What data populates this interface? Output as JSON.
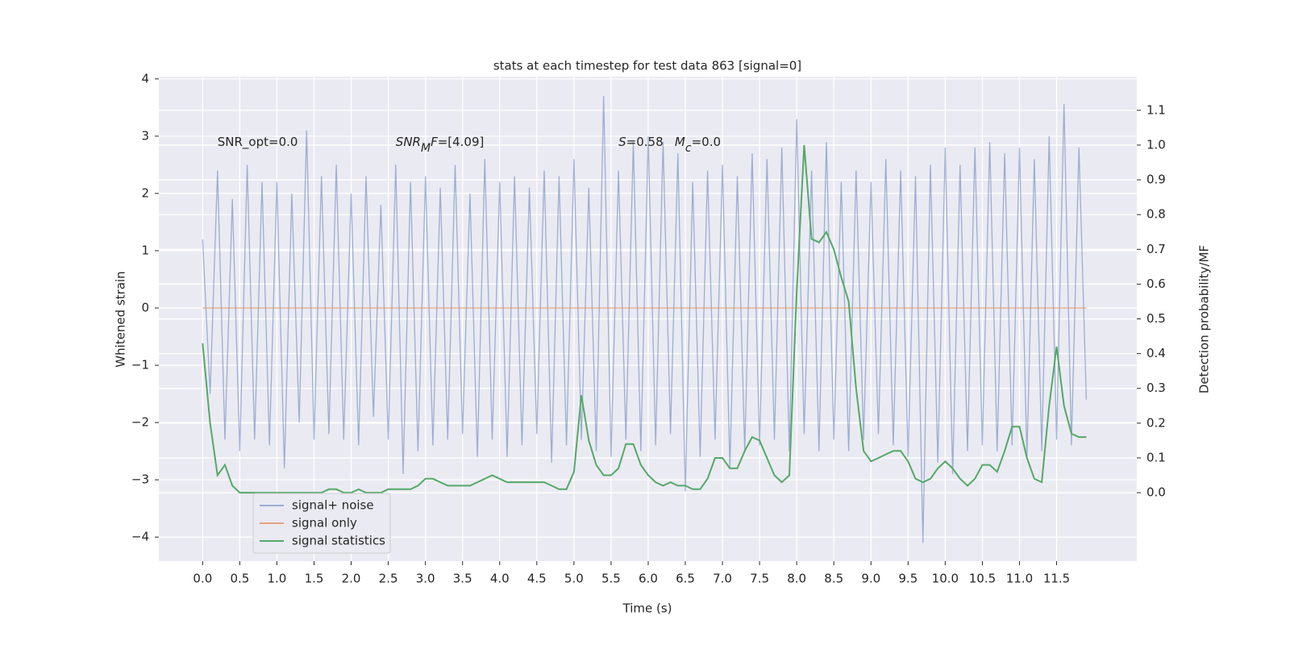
{
  "chart_data": {
    "type": "line",
    "title": "stats at each timestep for test data 863 [signal=0]",
    "xlabel": "Time (s)",
    "ylabel": "Whitened strain",
    "y2label": "Detection probability/MF",
    "annotations": [
      {
        "x": 0.2,
        "y": 2.9,
        "parts": [
          {
            "text": "SNR_opt=0.0"
          }
        ]
      },
      {
        "x": 2.6,
        "y": 2.9,
        "parts": [
          {
            "text": "SNR",
            "italic": true
          },
          {
            "text": "M",
            "italic": true,
            "sub": true
          },
          {
            "text": "F",
            "italic": true
          },
          {
            "text": "=[4.09]"
          }
        ]
      },
      {
        "x": 5.6,
        "y": 2.9,
        "parts": [
          {
            "text": "S",
            "italic": true
          },
          {
            "text": "=0.58   "
          },
          {
            "text": "M",
            "italic": true
          },
          {
            "text": "c",
            "italic": true,
            "sub": true
          },
          {
            "text": "=0.0"
          }
        ]
      }
    ],
    "x": [
      0,
      0.1,
      0.2,
      0.3,
      0.4,
      0.5,
      0.6,
      0.7,
      0.8,
      0.9,
      1,
      1.1,
      1.2,
      1.3,
      1.4,
      1.5,
      1.6,
      1.7,
      1.8,
      1.9,
      2,
      2.1,
      2.2,
      2.3,
      2.4,
      2.5,
      2.6,
      2.7,
      2.8,
      2.9,
      3,
      3.1,
      3.2,
      3.3,
      3.4,
      3.5,
      3.6,
      3.7,
      3.8,
      3.9,
      4,
      4.1,
      4.2,
      4.3,
      4.4,
      4.5,
      4.6,
      4.7,
      4.8,
      4.9,
      5,
      5.1,
      5.2,
      5.3,
      5.4,
      5.5,
      5.6,
      5.7,
      5.8,
      5.9,
      6,
      6.1,
      6.2,
      6.3,
      6.4,
      6.5,
      6.6,
      6.7,
      6.8,
      6.9,
      7,
      7.1,
      7.2,
      7.3,
      7.4,
      7.5,
      7.6,
      7.7,
      7.8,
      7.9,
      8,
      8.1,
      8.2,
      8.3,
      8.4,
      8.5,
      8.6,
      8.7,
      8.8,
      8.9,
      9,
      9.1,
      9.2,
      9.3,
      9.4,
      9.5,
      9.6,
      9.7,
      9.8,
      9.9,
      10,
      10.1,
      10.2,
      10.3,
      10.4,
      10.5,
      10.6,
      10.7,
      10.8,
      10.9,
      11,
      11.1,
      11.2,
      11.3,
      11.4,
      11.5,
      11.6,
      11.7,
      11.8,
      11.9
    ],
    "series": [
      {
        "name": "signal+ noise",
        "color": "#4c72b0",
        "opacity": 0.5,
        "axis": "y",
        "values": [
          1.2,
          -1.5,
          2.4,
          -2.3,
          1.9,
          -2.5,
          2.5,
          -2.3,
          2.2,
          -2.4,
          2.2,
          -2.8,
          2.0,
          -2.0,
          3.1,
          -2.3,
          2.3,
          -2.2,
          2.5,
          -2.3,
          2.0,
          -2.4,
          2.3,
          -1.9,
          1.8,
          -2.3,
          2.5,
          -2.9,
          2.2,
          -2.5,
          2.3,
          -2.4,
          2.1,
          -2.3,
          2.5,
          -2.2,
          2.0,
          -2.6,
          2.6,
          -2.3,
          2.2,
          -2.6,
          2.3,
          -2.4,
          2.1,
          -2.2,
          2.4,
          -2.7,
          2.3,
          -2.4,
          2.6,
          -2.3,
          2.1,
          -2.5,
          3.7,
          -2.6,
          2.4,
          -2.3,
          2.9,
          -2.5,
          3.0,
          -2.4,
          2.9,
          -2.2,
          2.7,
          -3.2,
          2.2,
          -2.6,
          2.4,
          -2.3,
          2.5,
          -2.8,
          2.3,
          -2.5,
          2.7,
          -2.4,
          2.6,
          -2.3,
          2.8,
          -2.5,
          3.3,
          -2.2,
          2.4,
          -2.5,
          2.9,
          -2.3,
          2.2,
          -2.5,
          2.4,
          -2.3,
          2.2,
          -2.2,
          2.6,
          -2.4,
          2.4,
          -2.6,
          2.3,
          -4.1,
          2.5,
          -2.7,
          2.8,
          -2.9,
          2.5,
          -2.5,
          2.8,
          -2.4,
          2.9,
          -2.5,
          2.7,
          -2.4,
          2.8,
          -2.6,
          2.6,
          -2.5,
          3.0,
          -2.3,
          3.56,
          -2.4,
          2.8,
          -1.6
        ]
      },
      {
        "name": "signal only",
        "color": "#dd8452",
        "opacity": 0.7,
        "axis": "y",
        "values": [
          0,
          0,
          0,
          0,
          0,
          0,
          0,
          0,
          0,
          0,
          0,
          0,
          0,
          0,
          0,
          0,
          0,
          0,
          0,
          0,
          0,
          0,
          0,
          0,
          0,
          0,
          0,
          0,
          0,
          0,
          0,
          0,
          0,
          0,
          0,
          0,
          0,
          0,
          0,
          0,
          0,
          0,
          0,
          0,
          0,
          0,
          0,
          0,
          0,
          0,
          0,
          0,
          0,
          0,
          0,
          0,
          0,
          0,
          0,
          0,
          0,
          0,
          0,
          0,
          0,
          0,
          0,
          0,
          0,
          0,
          0,
          0,
          0,
          0,
          0,
          0,
          0,
          0,
          0,
          0,
          0,
          0,
          0,
          0,
          0,
          0,
          0,
          0,
          0,
          0,
          0,
          0,
          0,
          0,
          0,
          0,
          0,
          0,
          0,
          0,
          0,
          0,
          0,
          0,
          0,
          0,
          0,
          0,
          0,
          0,
          0,
          0,
          0,
          0,
          0,
          0,
          0,
          0,
          0,
          0
        ]
      },
      {
        "name": "signal statistics",
        "color": "#55a868",
        "opacity": 1,
        "axis": "y2",
        "values": [
          0.43,
          0.2,
          0.05,
          0.08,
          0.02,
          0,
          0,
          0,
          0,
          0,
          0,
          0,
          0,
          0,
          0,
          0,
          0,
          0.01,
          0.01,
          0,
          0,
          0.01,
          0,
          0,
          0,
          0.01,
          0.01,
          0.01,
          0.01,
          0.02,
          0.04,
          0.04,
          0.03,
          0.02,
          0.02,
          0.02,
          0.02,
          0.03,
          0.04,
          0.05,
          0.04,
          0.03,
          0.03,
          0.03,
          0.03,
          0.03,
          0.03,
          0.02,
          0.01,
          0.01,
          0.06,
          0.28,
          0.15,
          0.08,
          0.05,
          0.05,
          0.07,
          0.14,
          0.14,
          0.08,
          0.05,
          0.03,
          0.02,
          0.03,
          0.02,
          0.02,
          0.01,
          0.01,
          0.04,
          0.1,
          0.1,
          0.07,
          0.07,
          0.12,
          0.16,
          0.15,
          0.1,
          0.05,
          0.03,
          0.05,
          0.58,
          1.0,
          0.73,
          0.72,
          0.75,
          0.7,
          0.62,
          0.55,
          0.3,
          0.12,
          0.09,
          0.1,
          0.11,
          0.12,
          0.12,
          0.09,
          0.04,
          0.03,
          0.04,
          0.07,
          0.09,
          0.07,
          0.04,
          0.02,
          0.04,
          0.08,
          0.08,
          0.06,
          0.12,
          0.19,
          0.19,
          0.1,
          0.04,
          0.03,
          0.25,
          0.42,
          0.25,
          0.17,
          0.16,
          0.16
        ]
      }
    ],
    "xlim": [
      -0.59,
      12.58
    ],
    "xticks": [
      {
        "value": 0,
        "label": "0.0"
      },
      0.5,
      {
        "value": 1,
        "label": "1.0"
      },
      1.5,
      {
        "value": 2,
        "label": "2.0"
      },
      2.5,
      {
        "value": 3,
        "label": "3.0"
      },
      3.5,
      {
        "value": 4,
        "label": "4.0"
      },
      4.5,
      {
        "value": 5,
        "label": "5.0"
      },
      5.5,
      {
        "value": 6,
        "label": "6.0"
      },
      6.5,
      {
        "value": 7,
        "label": "7.0"
      },
      7.5,
      {
        "value": 8,
        "label": "8.0"
      },
      8.5,
      {
        "value": 9,
        "label": "9.0"
      },
      9.5,
      {
        "value": 10,
        "label": "10.0"
      },
      10.5,
      {
        "value": 11,
        "label": "11.0"
      },
      11.5
    ],
    "ylim": [
      -4.42,
      4.04
    ],
    "yticks": [
      {
        "value": -4,
        "label": "−4"
      },
      {
        "value": -3,
        "label": "−3"
      },
      {
        "value": -2,
        "label": "−2"
      },
      {
        "value": -1,
        "label": "−1"
      },
      0,
      1,
      2,
      3,
      4
    ],
    "y2lim": [
      -0.197,
      1.197
    ],
    "y2ticks": [
      {
        "value": 0,
        "label": "0.0"
      },
      0.1,
      0.2,
      0.3,
      0.4,
      0.5,
      0.6,
      0.7,
      0.8,
      0.9,
      {
        "value": 1,
        "label": "1.0"
      },
      1.1
    ],
    "grid": true,
    "legend": "lower left"
  }
}
